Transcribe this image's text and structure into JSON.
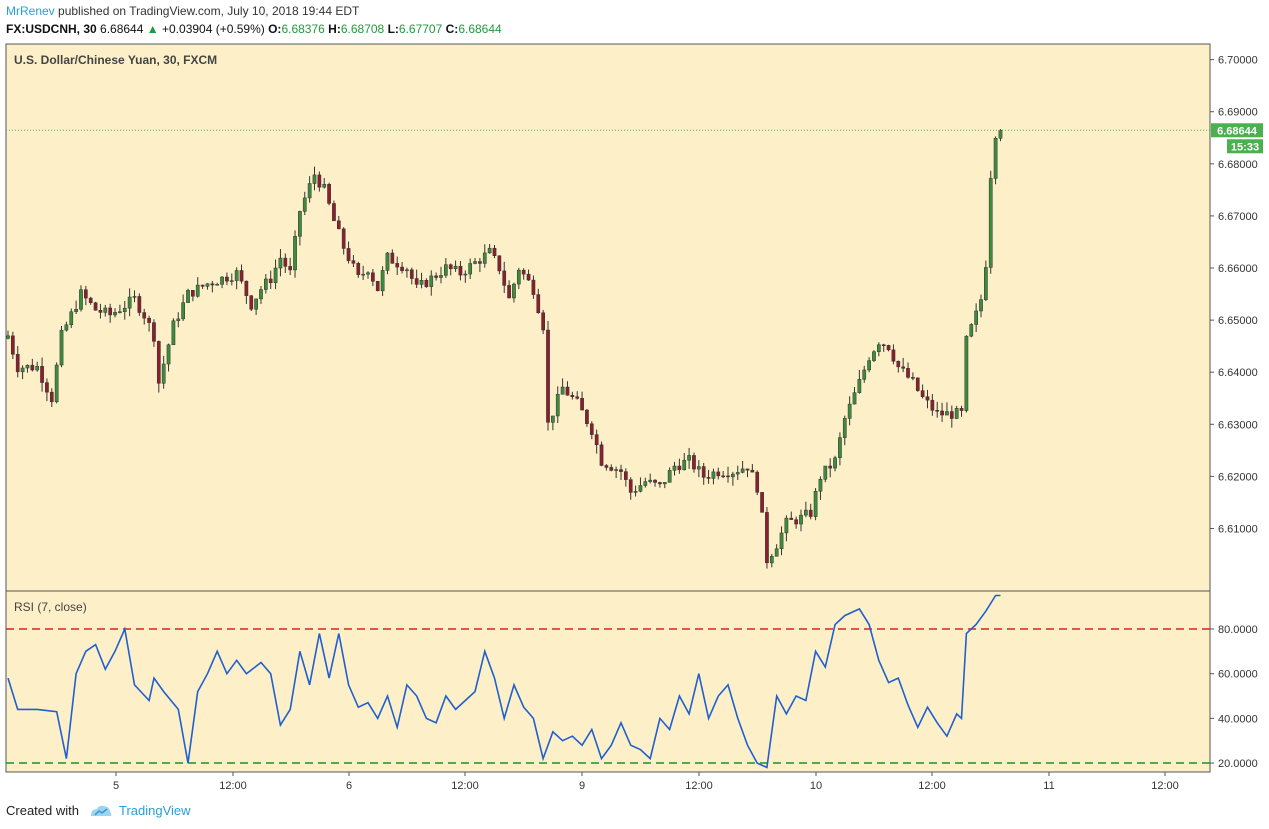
{
  "header": {
    "author": "MrRenev",
    "published": "published on TradingView.com, July 10, 2018 19:44 EDT",
    "symbol": "FX:USDCNH, 30",
    "last": "6.68644",
    "change": "+0.03904 (+0.59%)",
    "open_label": "O:",
    "open": "6.68376",
    "high_label": "H:",
    "high": "6.68708",
    "low_label": "L:",
    "low": "6.67707",
    "close_label": "C:",
    "close": "6.68644"
  },
  "footer": {
    "created_with": "Created with",
    "brand": "TradingView"
  },
  "colors": {
    "background": "#fdf0c8",
    "up": "#3c8c3c",
    "down": "#8a1f2e",
    "rsi": "#1f5fd0",
    "overbought": "#e02020",
    "oversold": "#1f8f1f",
    "price_tag": "#4caf50"
  },
  "chart_data": [
    {
      "type": "candlestick",
      "title": "U.S. Dollar/Chinese Yuan, 30, FXCM",
      "ylim": [
        6.598,
        6.703
      ],
      "yticks": [
        "6.70000",
        "6.69000",
        "6.68000",
        "6.67000",
        "6.66000",
        "6.65000",
        "6.64000",
        "6.63000",
        "6.62000",
        "6.61000"
      ],
      "xticks": [
        "5",
        "12:00",
        "6",
        "12:00",
        "9",
        "12:00",
        "10",
        "12:00",
        "11",
        "12:00"
      ],
      "last_price_label": "6.68644",
      "countdown_label": "15:33",
      "last_price": 6.68644,
      "close_path": [
        [
          0,
          6.647
        ],
        [
          2,
          6.641
        ],
        [
          6,
          6.641
        ],
        [
          9,
          6.635
        ],
        [
          11,
          6.647
        ],
        [
          15,
          6.655
        ],
        [
          18,
          6.652
        ],
        [
          21,
          6.651
        ],
        [
          26,
          6.654
        ],
        [
          28,
          6.651
        ],
        [
          30,
          6.647
        ],
        [
          31,
          6.638
        ],
        [
          34,
          6.649
        ],
        [
          37,
          6.655
        ],
        [
          41,
          6.657
        ],
        [
          47,
          6.659
        ],
        [
          50,
          6.653
        ],
        [
          52,
          6.656
        ],
        [
          54,
          6.658
        ],
        [
          56,
          6.662
        ],
        [
          58,
          6.659
        ],
        [
          60,
          6.671
        ],
        [
          63,
          6.678
        ],
        [
          65,
          6.675
        ],
        [
          67,
          6.669
        ],
        [
          69,
          6.664
        ],
        [
          72,
          6.658
        ],
        [
          74,
          6.66
        ],
        [
          76,
          6.656
        ],
        [
          78,
          6.662
        ],
        [
          82,
          6.66
        ],
        [
          84,
          6.656
        ],
        [
          87,
          6.658
        ],
        [
          90,
          6.66
        ],
        [
          93,
          6.659
        ],
        [
          96,
          6.661
        ],
        [
          99,
          6.663
        ],
        [
          101,
          6.66
        ],
        [
          103,
          6.654
        ],
        [
          105,
          6.66
        ],
        [
          108,
          6.656
        ],
        [
          110,
          6.649
        ],
        [
          111,
          6.63
        ],
        [
          114,
          6.637
        ],
        [
          117,
          6.634
        ],
        [
          120,
          6.629
        ],
        [
          122,
          6.623
        ],
        [
          126,
          6.621
        ],
        [
          128,
          6.617
        ],
        [
          131,
          6.619
        ],
        [
          134,
          6.618
        ],
        [
          137,
          6.622
        ],
        [
          140,
          6.623
        ],
        [
          143,
          6.62
        ],
        [
          146,
          6.621
        ],
        [
          149,
          6.621
        ],
        [
          152,
          6.622
        ],
        [
          154,
          6.618
        ],
        [
          155,
          6.612
        ],
        [
          156,
          6.604
        ],
        [
          158,
          6.607
        ],
        [
          160,
          6.611
        ],
        [
          163,
          6.612
        ],
        [
          165,
          6.613
        ],
        [
          167,
          6.62
        ],
        [
          170,
          6.623
        ],
        [
          172,
          6.631
        ],
        [
          175,
          6.638
        ],
        [
          177,
          6.643
        ],
        [
          179,
          6.646
        ],
        [
          181,
          6.645
        ],
        [
          183,
          6.641
        ],
        [
          186,
          6.638
        ],
        [
          188,
          6.635
        ],
        [
          191,
          6.632
        ],
        [
          194,
          6.632
        ],
        [
          196,
          6.632
        ],
        [
          197,
          6.646
        ],
        [
          199,
          6.651
        ],
        [
          200,
          6.654
        ],
        [
          201,
          6.661
        ],
        [
          202,
          6.678
        ],
        [
          203,
          6.686
        ],
        [
          204,
          6.68644
        ]
      ]
    },
    {
      "type": "line",
      "title": "RSI (7, close)",
      "ylim": [
        16,
        97
      ],
      "yticks": [
        "80.0000",
        "60.0000",
        "40.0000",
        "20.0000"
      ],
      "overbought": 80,
      "oversold": 20,
      "rsi_path": [
        [
          0,
          58
        ],
        [
          2,
          44
        ],
        [
          6,
          44
        ],
        [
          10,
          43
        ],
        [
          12,
          22
        ],
        [
          14,
          60
        ],
        [
          16,
          70
        ],
        [
          18,
          73
        ],
        [
          20,
          62
        ],
        [
          22,
          70
        ],
        [
          24,
          80
        ],
        [
          26,
          55
        ],
        [
          29,
          48
        ],
        [
          30,
          58
        ],
        [
          32,
          52
        ],
        [
          35,
          44
        ],
        [
          37,
          20
        ],
        [
          39,
          52
        ],
        [
          41,
          60
        ],
        [
          43,
          70
        ],
        [
          45,
          60
        ],
        [
          47,
          66
        ],
        [
          49,
          60
        ],
        [
          52,
          65
        ],
        [
          54,
          60
        ],
        [
          56,
          37
        ],
        [
          58,
          44
        ],
        [
          60,
          70
        ],
        [
          62,
          55
        ],
        [
          64,
          78
        ],
        [
          66,
          58
        ],
        [
          68,
          78
        ],
        [
          70,
          55
        ],
        [
          72,
          45
        ],
        [
          74,
          47
        ],
        [
          76,
          40
        ],
        [
          78,
          50
        ],
        [
          80,
          36
        ],
        [
          82,
          55
        ],
        [
          84,
          50
        ],
        [
          86,
          40
        ],
        [
          88,
          38
        ],
        [
          90,
          50
        ],
        [
          92,
          44
        ],
        [
          94,
          48
        ],
        [
          96,
          52
        ],
        [
          98,
          70
        ],
        [
          100,
          58
        ],
        [
          102,
          40
        ],
        [
          104,
          55
        ],
        [
          106,
          45
        ],
        [
          108,
          40
        ],
        [
          110,
          22
        ],
        [
          112,
          34
        ],
        [
          114,
          30
        ],
        [
          116,
          32
        ],
        [
          118,
          28
        ],
        [
          120,
          35
        ],
        [
          122,
          22
        ],
        [
          124,
          28
        ],
        [
          126,
          38
        ],
        [
          128,
          28
        ],
        [
          130,
          26
        ],
        [
          132,
          22
        ],
        [
          134,
          40
        ],
        [
          136,
          35
        ],
        [
          138,
          50
        ],
        [
          140,
          42
        ],
        [
          142,
          60
        ],
        [
          144,
          40
        ],
        [
          146,
          50
        ],
        [
          148,
          55
        ],
        [
          150,
          40
        ],
        [
          152,
          28
        ],
        [
          154,
          20
        ],
        [
          156,
          18
        ],
        [
          158,
          50
        ],
        [
          160,
          42
        ],
        [
          162,
          50
        ],
        [
          164,
          48
        ],
        [
          166,
          70
        ],
        [
          168,
          63
        ],
        [
          170,
          82
        ],
        [
          172,
          86
        ],
        [
          174,
          88
        ],
        [
          175,
          89
        ],
        [
          177,
          82
        ],
        [
          179,
          66
        ],
        [
          181,
          56
        ],
        [
          183,
          58
        ],
        [
          185,
          46
        ],
        [
          187,
          36
        ],
        [
          189,
          45
        ],
        [
          191,
          38
        ],
        [
          193,
          32
        ],
        [
          195,
          42
        ],
        [
          196,
          40
        ],
        [
          197,
          78
        ],
        [
          199,
          82
        ],
        [
          201,
          88
        ],
        [
          203,
          95
        ],
        [
          204,
          95
        ]
      ]
    }
  ]
}
